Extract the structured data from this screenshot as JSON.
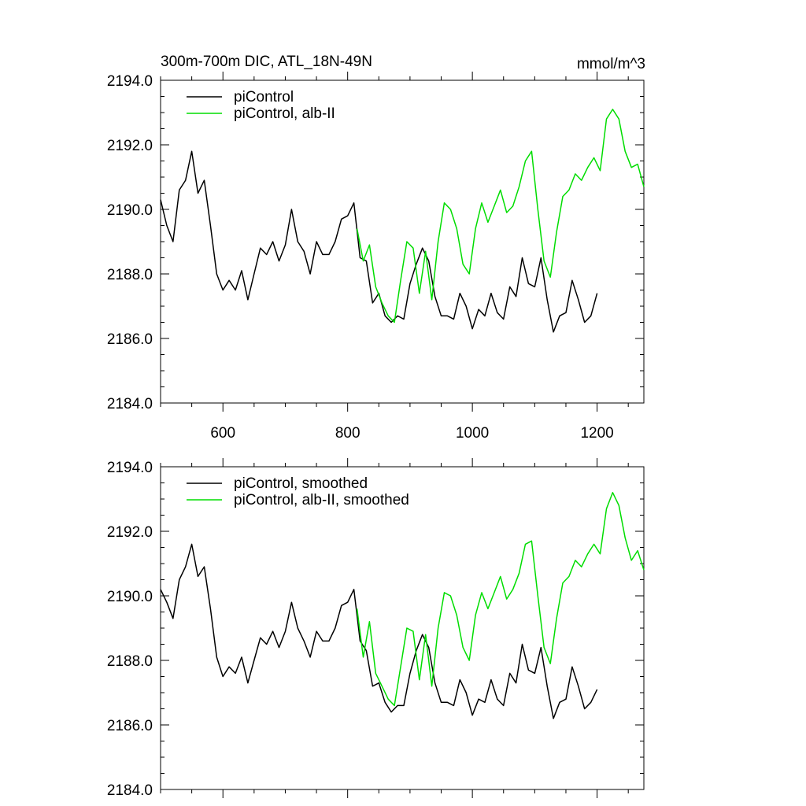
{
  "chart_data": [
    {
      "type": "line",
      "title": "300m-700m DIC, ATL_18N-49N",
      "units": "mmol/m^3",
      "xlim": [
        500,
        1275
      ],
      "ylim": [
        2184,
        2194
      ],
      "x_ticks": [
        600,
        800,
        1000,
        1200
      ],
      "x_tick_labels": [
        "600",
        "800",
        "1000",
        "1200"
      ],
      "y_ticks": [
        2184,
        2186,
        2188,
        2190,
        2192,
        2194
      ],
      "y_tick_labels": [
        "2184.0",
        "2186.0",
        "2188.0",
        "2190.0",
        "2192.0",
        "2194.0"
      ],
      "grid": false,
      "legend": "top-left",
      "series": [
        {
          "name": "piControl",
          "color": "#000000",
          "x": [
            500,
            510,
            520,
            530,
            540,
            550,
            560,
            570,
            580,
            590,
            600,
            610,
            620,
            630,
            640,
            650,
            660,
            670,
            680,
            690,
            700,
            710,
            720,
            730,
            740,
            750,
            760,
            770,
            780,
            790,
            800,
            810,
            820,
            830,
            840,
            850,
            860,
            870,
            880,
            890,
            900,
            910,
            920,
            930,
            940,
            950,
            960,
            970,
            980,
            990,
            1000,
            1010,
            1020,
            1030,
            1040,
            1050,
            1060,
            1070,
            1080,
            1090,
            1100,
            1110,
            1120,
            1130,
            1140,
            1150,
            1160,
            1170,
            1180,
            1190,
            1200
          ],
          "y": [
            2190.3,
            2189.5,
            2189.0,
            2190.6,
            2190.9,
            2191.8,
            2190.5,
            2190.9,
            2189.5,
            2188.0,
            2187.5,
            2187.8,
            2187.5,
            2188.1,
            2187.2,
            2188.0,
            2188.8,
            2188.6,
            2189.0,
            2188.4,
            2188.9,
            2190.0,
            2189.0,
            2188.7,
            2188.0,
            2189.0,
            2188.6,
            2188.6,
            2189.0,
            2189.7,
            2189.8,
            2190.2,
            2188.5,
            2188.4,
            2187.1,
            2187.4,
            2186.7,
            2186.5,
            2186.7,
            2186.6,
            2187.7,
            2188.3,
            2188.8,
            2188.4,
            2187.3,
            2186.7,
            2186.7,
            2186.6,
            2187.4,
            2187.0,
            2186.3,
            2186.9,
            2186.7,
            2187.4,
            2186.8,
            2186.6,
            2187.6,
            2187.3,
            2188.5,
            2187.7,
            2187.6,
            2188.5,
            2187.2,
            2186.2,
            2186.7,
            2186.8,
            2187.8,
            2187.2,
            2186.5,
            2186.7,
            2187.4
          ]
        },
        {
          "name": "piControl, alb-II",
          "color": "#00dd00",
          "x": [
            815,
            825,
            835,
            845,
            855,
            865,
            875,
            885,
            895,
            905,
            915,
            925,
            935,
            945,
            955,
            965,
            975,
            985,
            995,
            1005,
            1015,
            1025,
            1035,
            1045,
            1055,
            1065,
            1075,
            1085,
            1095,
            1105,
            1115,
            1125,
            1135,
            1145,
            1155,
            1165,
            1175,
            1185,
            1195,
            1205,
            1215,
            1225,
            1235,
            1245,
            1255,
            1265,
            1275
          ],
          "y": [
            2189.4,
            2188.4,
            2188.9,
            2187.6,
            2187.1,
            2186.7,
            2186.5,
            2187.8,
            2189.0,
            2188.8,
            2187.4,
            2188.7,
            2187.2,
            2189.0,
            2190.2,
            2190.0,
            2189.4,
            2188.3,
            2188.0,
            2189.4,
            2190.2,
            2189.6,
            2190.1,
            2190.6,
            2189.9,
            2190.1,
            2190.7,
            2191.5,
            2191.8,
            2190.0,
            2188.4,
            2187.9,
            2189.3,
            2190.4,
            2190.6,
            2191.1,
            2190.9,
            2191.3,
            2191.6,
            2191.2,
            2192.8,
            2193.1,
            2192.8,
            2191.8,
            2191.3,
            2191.4,
            2190.7
          ]
        }
      ]
    },
    {
      "type": "line",
      "xlim": [
        500,
        1275
      ],
      "ylim": [
        2184,
        2194
      ],
      "x_ticks": [
        600,
        800,
        1000,
        1200
      ],
      "y_ticks": [
        2184,
        2186,
        2188,
        2190,
        2192,
        2194
      ],
      "y_tick_labels": [
        "2184.0",
        "2186.0",
        "2188.0",
        "2190.0",
        "2192.0",
        "2194.0"
      ],
      "grid": false,
      "legend": "top-left",
      "series": [
        {
          "name": "piControl, smoothed",
          "color": "#000000",
          "x": [
            500,
            510,
            520,
            530,
            540,
            550,
            560,
            570,
            580,
            590,
            600,
            610,
            620,
            630,
            640,
            650,
            660,
            670,
            680,
            690,
            700,
            710,
            720,
            730,
            740,
            750,
            760,
            770,
            780,
            790,
            800,
            810,
            820,
            830,
            840,
            850,
            860,
            870,
            880,
            890,
            900,
            910,
            920,
            930,
            940,
            950,
            960,
            970,
            980,
            990,
            1000,
            1010,
            1020,
            1030,
            1040,
            1050,
            1060,
            1070,
            1080,
            1090,
            1100,
            1110,
            1120,
            1130,
            1140,
            1150,
            1160,
            1170,
            1180,
            1190,
            1200
          ],
          "y": [
            2190.2,
            2189.8,
            2189.3,
            2190.5,
            2190.9,
            2191.6,
            2190.6,
            2190.9,
            2189.6,
            2188.1,
            2187.5,
            2187.8,
            2187.6,
            2188.1,
            2187.3,
            2188.0,
            2188.7,
            2188.5,
            2188.9,
            2188.4,
            2188.9,
            2189.8,
            2189.0,
            2188.6,
            2188.1,
            2188.9,
            2188.6,
            2188.6,
            2189.0,
            2189.7,
            2189.8,
            2190.2,
            2188.6,
            2188.3,
            2187.2,
            2187.3,
            2186.7,
            2186.4,
            2186.6,
            2186.6,
            2187.6,
            2188.3,
            2188.8,
            2188.4,
            2187.3,
            2186.7,
            2186.7,
            2186.6,
            2187.4,
            2187.0,
            2186.3,
            2186.8,
            2186.7,
            2187.4,
            2186.8,
            2186.6,
            2187.6,
            2187.3,
            2188.5,
            2187.7,
            2187.6,
            2188.4,
            2187.2,
            2186.2,
            2186.7,
            2186.8,
            2187.8,
            2187.2,
            2186.5,
            2186.7,
            2187.1
          ]
        },
        {
          "name": "piControl, alb-II, smoothed",
          "color": "#00dd00",
          "x": [
            815,
            825,
            835,
            845,
            855,
            865,
            875,
            885,
            895,
            905,
            915,
            925,
            935,
            945,
            955,
            965,
            975,
            985,
            995,
            1005,
            1015,
            1025,
            1035,
            1045,
            1055,
            1065,
            1075,
            1085,
            1095,
            1105,
            1115,
            1125,
            1135,
            1145,
            1155,
            1165,
            1175,
            1185,
            1195,
            1205,
            1215,
            1225,
            1235,
            1245,
            1255,
            1265,
            1275
          ],
          "y": [
            2189.6,
            2188.1,
            2189.2,
            2187.6,
            2187.2,
            2186.8,
            2186.6,
            2187.8,
            2189.0,
            2188.9,
            2187.4,
            2188.8,
            2187.2,
            2189.0,
            2190.1,
            2190.0,
            2189.4,
            2188.4,
            2188.0,
            2189.4,
            2190.1,
            2189.6,
            2190.1,
            2190.6,
            2189.9,
            2190.2,
            2190.7,
            2191.6,
            2191.7,
            2190.0,
            2188.4,
            2187.9,
            2189.3,
            2190.4,
            2190.6,
            2191.1,
            2190.9,
            2191.3,
            2191.6,
            2191.3,
            2192.7,
            2193.2,
            2192.8,
            2191.8,
            2191.1,
            2191.4,
            2190.8
          ]
        }
      ]
    }
  ]
}
